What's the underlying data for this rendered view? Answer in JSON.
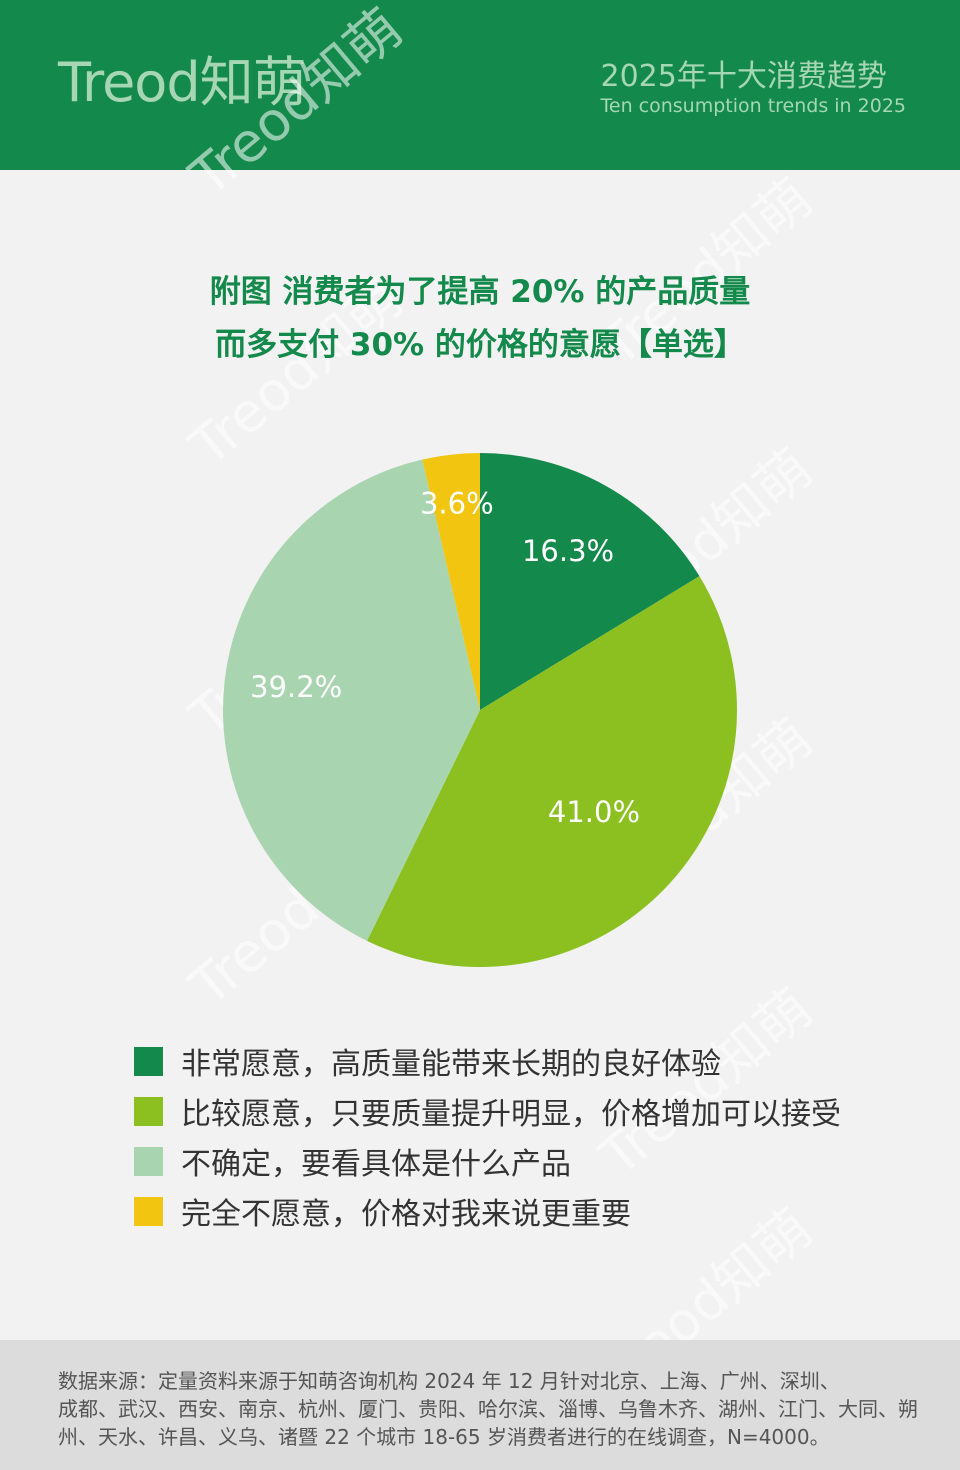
{
  "header": {
    "logo_text": "Treod知萌",
    "title_cn": "2025年十大消费趋势",
    "title_en": "Ten consumption trends in 2025"
  },
  "chart_title": {
    "line1": "附图  消费者为了提高 20% 的产品质量",
    "line2": "而多支付 30% 的价格的意愿【单选】"
  },
  "chart_data": {
    "type": "pie",
    "title": "附图  消费者为了提高 20% 的产品质量而多支付 30% 的价格的意愿【单选】",
    "categories": [
      "非常愿意，高质量能带来长期的良好体验",
      "比较愿意，只要质量提升明显，价格增加可以接受",
      "不确定，要看具体是什么产品",
      "完全不愿意，价格对我来说更重要"
    ],
    "values": [
      16.3,
      41.0,
      39.2,
      3.6
    ],
    "labels": [
      "16.3%",
      "41.0%",
      "39.2%",
      "3.6%"
    ],
    "colors": [
      "#138a4b",
      "#8cc021",
      "#a8d5b0",
      "#f2c511"
    ],
    "legend_position": "bottom",
    "start_angle": "12 o'clock",
    "direction": "clockwise"
  },
  "footer": {
    "line1": "数据来源：定量资料来源于知萌咨询机构 2024 年 12 月针对北京、上海、广州、深圳、",
    "line2": "成都、武汉、西安、南京、杭州、厦门、贵阳、哈尔滨、淄博、乌鲁木齐、湖州、江门、大同、朔",
    "line3": "州、天水、许昌、义乌、诸暨 22 个城市 18-65 岁消费者进行的在线调查，N=4000。"
  }
}
